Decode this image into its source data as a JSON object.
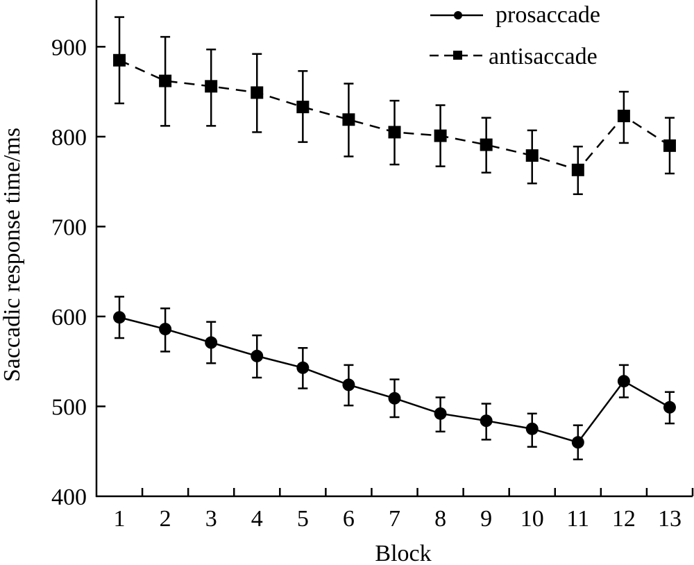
{
  "chart_data": {
    "type": "line",
    "title": "",
    "xlabel": "Block",
    "ylabel": "Saccadic response time/ms",
    "categories": [
      "1",
      "2",
      "3",
      "4",
      "5",
      "6",
      "7",
      "8",
      "9",
      "10",
      "11",
      "12",
      "13"
    ],
    "ylim": [
      400,
      952
    ],
    "yticks": [
      400,
      500,
      600,
      700,
      800,
      900
    ],
    "ytick_labels": [
      "400",
      "500",
      "600",
      "700",
      "800",
      "900"
    ],
    "grid": false,
    "legend_position": "top-right",
    "series": [
      {
        "name": "prosaccade",
        "marker": "circle",
        "line_style": "solid",
        "color": "#000000",
        "values": [
          599,
          586,
          571,
          556,
          543,
          524,
          509,
          492,
          484,
          475,
          460,
          528,
          499
        ],
        "error_upper": [
          622,
          609,
          594,
          579,
          565,
          546,
          530,
          510,
          503,
          492,
          479,
          546,
          516
        ],
        "error_lower": [
          576,
          561,
          548,
          532,
          520,
          501,
          488,
          472,
          463,
          455,
          441,
          510,
          481
        ]
      },
      {
        "name": "antisaccade",
        "marker": "square",
        "line_style": "dashed",
        "color": "#000000",
        "values": [
          885,
          862,
          856,
          849,
          833,
          819,
          805,
          801,
          791,
          779,
          763,
          823,
          790
        ],
        "error_upper": [
          933,
          911,
          897,
          892,
          873,
          859,
          840,
          835,
          821,
          807,
          789,
          850,
          821
        ],
        "error_lower": [
          837,
          812,
          812,
          805,
          794,
          778,
          769,
          767,
          760,
          748,
          736,
          793,
          759
        ]
      }
    ]
  }
}
